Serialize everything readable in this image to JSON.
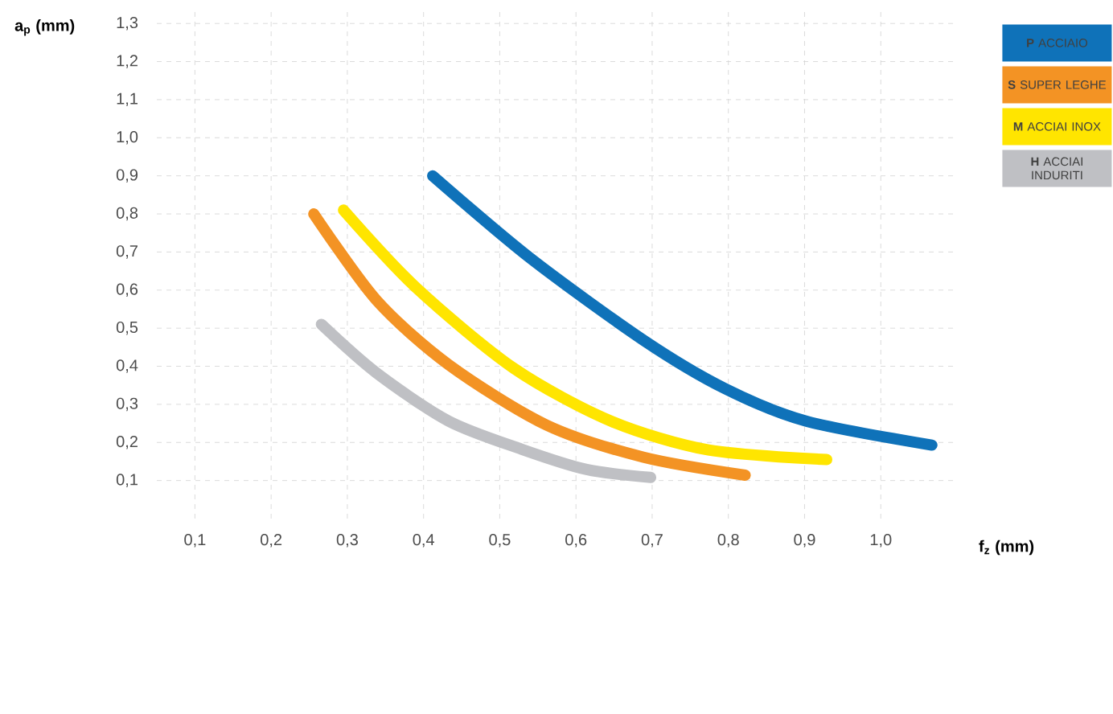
{
  "chart_data": {
    "type": "line",
    "xlabel": "f$_{z}$ (mm)",
    "ylabel": "a$_{p}$ (mm)",
    "series": [
      {
        "name": "**P** ACCIAIO",
        "color": "#0f72b9",
        "x": [
          0.412,
          0.54,
          0.689,
          0.796,
          0.902,
          1.067
        ],
        "values": [
          0.9,
          0.684,
          0.468,
          0.341,
          0.256,
          0.193
        ]
      },
      {
        "name": "**S** SUPER LEGHE",
        "color": "#f39324",
        "x": [
          0.256,
          0.338,
          0.433,
          0.561,
          0.689,
          0.822
        ],
        "values": [
          0.8,
          0.574,
          0.404,
          0.246,
          0.161,
          0.114
        ]
      },
      {
        "name": "**M** ACCIAI INOX",
        "color": "#ffe500",
        "x": [
          0.295,
          0.391,
          0.519,
          0.646,
          0.774,
          0.929
        ],
        "values": [
          0.81,
          0.605,
          0.394,
          0.256,
          0.18,
          0.155
        ]
      },
      {
        "name": "**H** ACCIAI INDURITI",
        "color": "#bfc0c4",
        "x": [
          0.266,
          0.338,
          0.433,
          0.529,
          0.614,
          0.698
        ],
        "values": [
          0.51,
          0.383,
          0.256,
          0.182,
          0.129,
          0.108
        ]
      }
    ],
    "xlim": [
      0.05,
      1.1
    ],
    "ylim": [
      0,
      1.33
    ],
    "xticks": [
      {
        "value": 0.1,
        "label": "0,1"
      },
      {
        "value": 0.2,
        "label": "0,2"
      },
      {
        "value": 0.3,
        "label": "0,3"
      },
      {
        "value": 0.4,
        "label": "0,4"
      },
      {
        "value": 0.5,
        "label": "0,5"
      },
      {
        "value": 0.6,
        "label": "0,6"
      },
      {
        "value": 0.7,
        "label": "0,7"
      },
      {
        "value": 0.8,
        "label": "0,8"
      },
      {
        "value": 0.9,
        "label": "0,9"
      },
      {
        "value": 1.0,
        "label": "1,0"
      }
    ],
    "yticks": [
      {
        "value": 0.1,
        "label": "0,1"
      },
      {
        "value": 0.2,
        "label": "0,2"
      },
      {
        "value": 0.3,
        "label": "0,3"
      },
      {
        "value": 0.4,
        "label": "0,4"
      },
      {
        "value": 0.5,
        "label": "0,5"
      },
      {
        "value": 0.6,
        "label": "0,6"
      },
      {
        "value": 0.7,
        "label": "0,7"
      },
      {
        "value": 0.8,
        "label": "0,8"
      },
      {
        "value": 0.9,
        "label": "0,9"
      },
      {
        "value": 1.0,
        "label": "1,0"
      },
      {
        "value": 1.1,
        "label": "1,1"
      },
      {
        "value": 1.2,
        "label": "1,2"
      },
      {
        "value": 1.3,
        "label": "1,3"
      }
    ],
    "grid": true,
    "legend": "top right",
    "marker": "none",
    "line_style": "solid"
  }
}
